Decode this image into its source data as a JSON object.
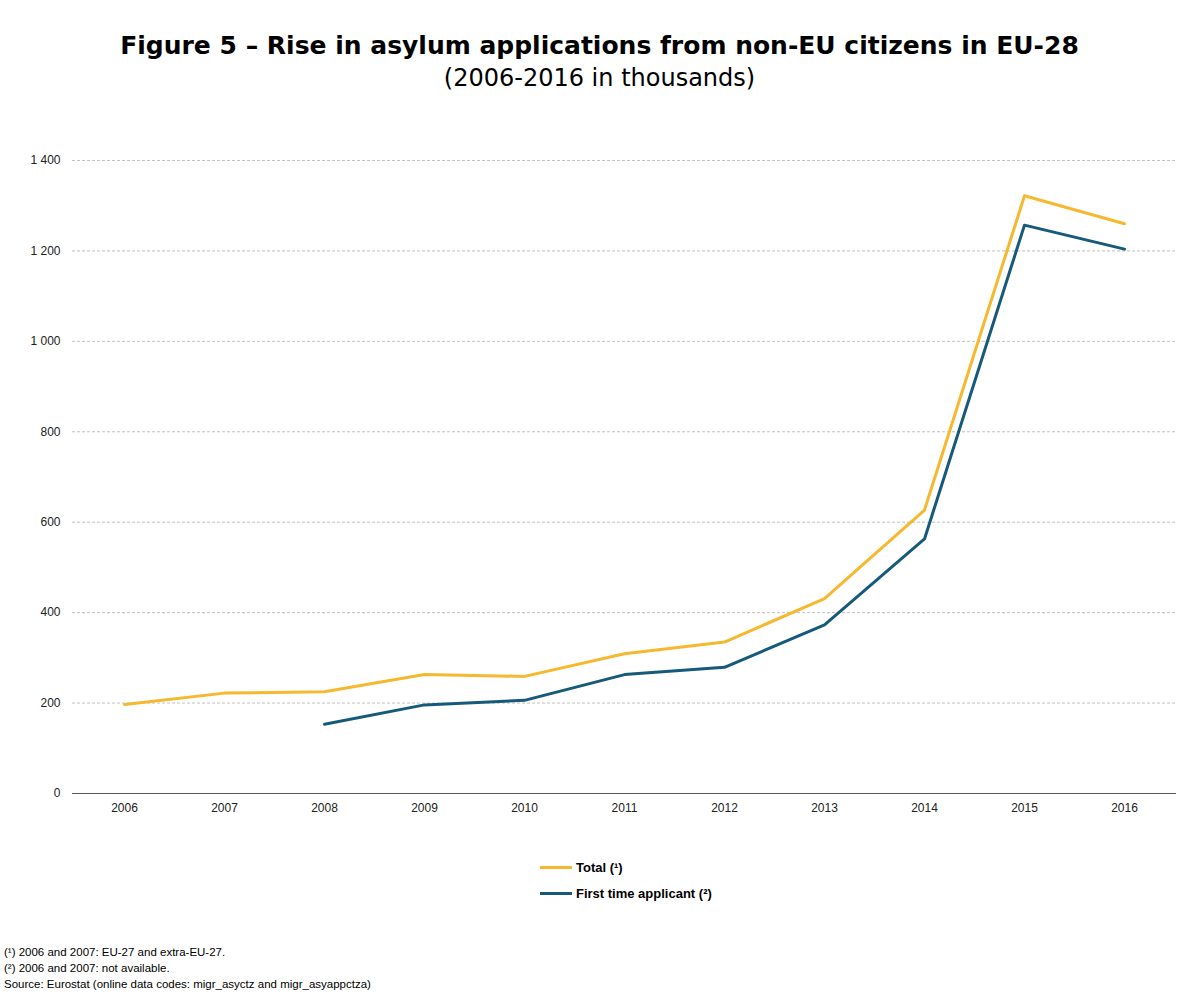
{
  "chart_data": {
    "type": "line",
    "title": "Figure 5 – Rise in asylum applications from non-EU citizens in EU-28",
    "subtitle": "(2006-2016 in thousands)",
    "categories": [
      "2006",
      "2007",
      "2008",
      "2009",
      "2010",
      "2011",
      "2012",
      "2013",
      "2014",
      "2015",
      "2016"
    ],
    "series": [
      {
        "name": "Total (¹)",
        "color": "#f5b82e",
        "values": [
          197,
          222,
          225,
          263,
          259,
          309,
          335,
          431,
          627,
          1322,
          1260
        ]
      },
      {
        "name": "First time applicant (²)",
        "color": "#17597b",
        "values": [
          null,
          null,
          153,
          196,
          206,
          263,
          279,
          373,
          563,
          1257,
          1204
        ]
      }
    ],
    "ylim": [
      0,
      1400
    ],
    "yticks": [
      0,
      200,
      400,
      600,
      800,
      {
        "value": 1000,
        "label": "1 000"
      },
      {
        "value": 1200,
        "label": "1 200"
      },
      {
        "value": 1400,
        "label": "1 400"
      }
    ],
    "grid": true,
    "legend": "bottom",
    "notes": [
      "(¹) 2006 and 2007: EU-27 and extra-EU-27.",
      "(²) 2006 and 2007: not available."
    ],
    "source": "Source: Eurostat (online data codes: migr_asyctz and migr_asyappctza)"
  }
}
